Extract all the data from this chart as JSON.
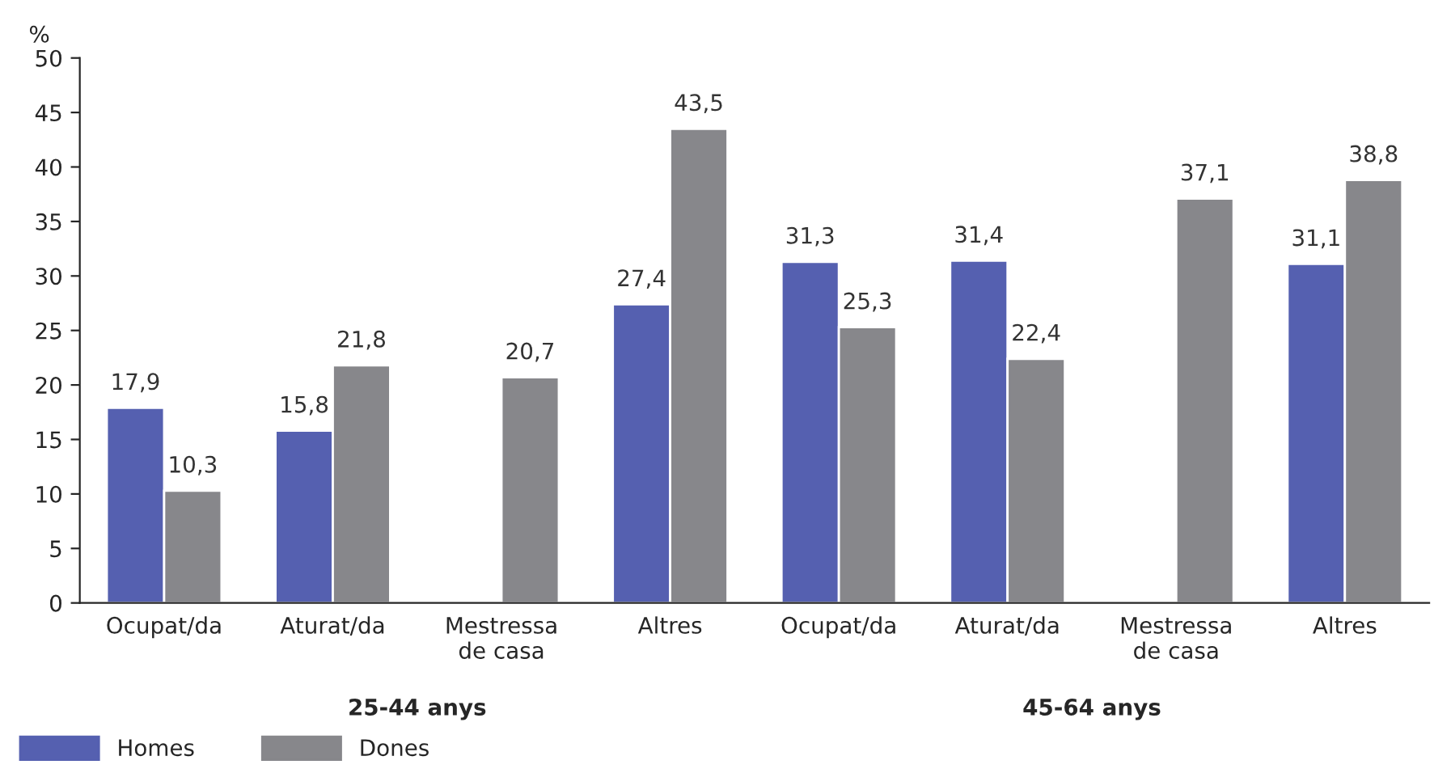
{
  "chart_data": {
    "type": "bar",
    "ylabel": "%",
    "categories": [
      "Ocupat/da",
      "Aturat/da",
      "Mestressa\nde casa",
      "Altres",
      "Ocupat/da",
      "Aturat/da",
      "Mestressa\nde casa",
      "Altres"
    ],
    "series": [
      {
        "name": "Homes",
        "color": "#5560b0",
        "values": [
          17.9,
          15.8,
          null,
          27.4,
          31.3,
          31.4,
          null,
          31.1
        ],
        "value_labels": [
          "17,9",
          "15,8",
          null,
          "27,4",
          "31,3",
          "31,4",
          null,
          "31,1"
        ]
      },
      {
        "name": "Dones",
        "color": "#87878b",
        "values": [
          10.3,
          21.8,
          20.7,
          43.5,
          25.3,
          22.4,
          37.1,
          38.8
        ],
        "value_labels": [
          "10,3",
          "21,8",
          "20,7",
          "43,5",
          "25,3",
          "22,4",
          "37,1",
          "38,8"
        ]
      }
    ],
    "ylim": [
      0,
      50
    ],
    "yticks": [
      0,
      5,
      10,
      15,
      20,
      25,
      30,
      35,
      40,
      45,
      50
    ],
    "annotations": [
      "25-44 anys",
      "45-64 anys"
    ],
    "legend": "bottom left"
  }
}
